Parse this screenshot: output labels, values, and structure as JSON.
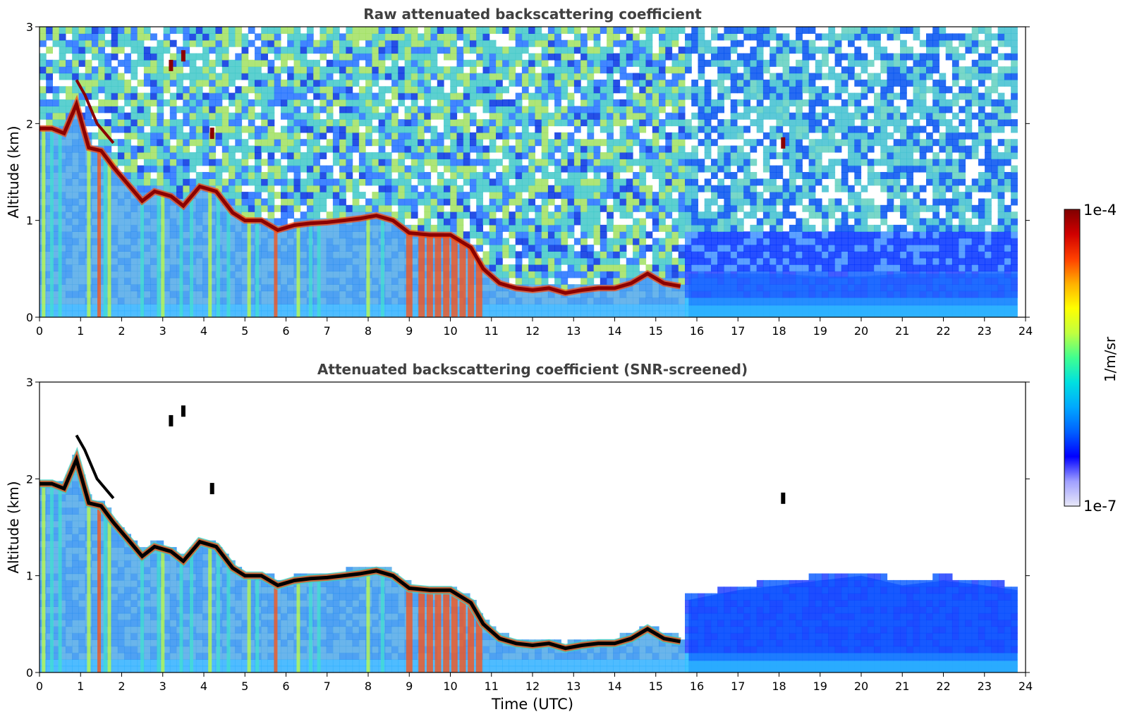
{
  "chart_data": [
    {
      "type": "heatmap",
      "title": "Raw attenuated backscattering coefficient",
      "xlabel": "",
      "ylabel": "Altitude (km)",
      "xlim": [
        0,
        24
      ],
      "ylim": [
        0,
        3
      ],
      "x_ticks": [
        "0",
        "1",
        "2",
        "3",
        "4",
        "5",
        "6",
        "7",
        "8",
        "9",
        "10",
        "11",
        "12",
        "13",
        "14",
        "15",
        "16",
        "17",
        "18",
        "19",
        "20",
        "21",
        "22",
        "23",
        "24"
      ],
      "y_ticks": [
        "0",
        "1",
        "2",
        "3"
      ],
      "data_end_x": 23.8,
      "screened": false,
      "cloud_base_km": [
        [
          0.0,
          1.95
        ],
        [
          0.3,
          1.95
        ],
        [
          0.6,
          1.9
        ],
        [
          0.9,
          2.2
        ],
        [
          1.2,
          1.75
        ],
        [
          1.5,
          1.72
        ],
        [
          1.8,
          1.55
        ],
        [
          2.0,
          1.45
        ],
        [
          2.2,
          1.35
        ],
        [
          2.5,
          1.2
        ],
        [
          2.8,
          1.3
        ],
        [
          3.2,
          1.25
        ],
        [
          3.5,
          1.15
        ],
        [
          3.9,
          1.35
        ],
        [
          4.3,
          1.3
        ],
        [
          4.7,
          1.08
        ],
        [
          5.0,
          1.0
        ],
        [
          5.4,
          1.0
        ],
        [
          5.8,
          0.9
        ],
        [
          6.2,
          0.95
        ],
        [
          6.6,
          0.97
        ],
        [
          7.0,
          0.98
        ],
        [
          7.4,
          1.0
        ],
        [
          7.8,
          1.02
        ],
        [
          8.2,
          1.05
        ],
        [
          8.6,
          1.0
        ],
        [
          9.0,
          0.87
        ],
        [
          9.5,
          0.85
        ],
        [
          10.0,
          0.85
        ],
        [
          10.5,
          0.72
        ],
        [
          10.8,
          0.5
        ],
        [
          11.2,
          0.35
        ],
        [
          11.6,
          0.3
        ],
        [
          12.0,
          0.28
        ],
        [
          12.4,
          0.3
        ],
        [
          12.8,
          0.25
        ],
        [
          13.2,
          0.28
        ],
        [
          13.6,
          0.3
        ],
        [
          14.0,
          0.3
        ],
        [
          14.4,
          0.35
        ],
        [
          14.8,
          0.45
        ],
        [
          15.2,
          0.35
        ],
        [
          15.6,
          0.32
        ]
      ],
      "cloud_base_secondary_km": [
        [
          0.9,
          2.45
        ],
        [
          1.1,
          2.3
        ],
        [
          1.4,
          2.0
        ],
        [
          1.8,
          1.8
        ]
      ],
      "upper_fragments_km": [
        [
          3.2,
          2.6
        ],
        [
          3.5,
          2.7
        ],
        [
          4.2,
          1.9
        ],
        [
          18.1,
          1.8
        ]
      ],
      "aerosol_layer_top_km": [
        [
          15.8,
          0.45
        ],
        [
          17,
          0.45
        ],
        [
          18,
          0.45
        ],
        [
          19,
          0.42
        ],
        [
          20,
          0.42
        ],
        [
          21,
          0.45
        ],
        [
          22,
          0.45
        ],
        [
          23,
          0.45
        ],
        [
          23.8,
          0.45
        ]
      ],
      "rain_columns_utc": [
        0.1,
        0.3,
        0.5,
        1.2,
        1.45,
        1.6,
        1.7,
        2.5,
        2.9,
        3.0,
        3.45,
        3.7,
        4.15,
        4.35,
        4.6,
        5.1,
        5.3,
        5.75,
        6.3,
        6.6,
        6.8,
        8.0,
        8.35,
        9.0,
        9.3,
        9.5,
        9.7,
        9.9,
        10.1,
        10.3,
        10.5,
        10.7
      ]
    },
    {
      "type": "heatmap",
      "title": "Attenuated backscattering coefficient (SNR-screened)",
      "xlabel": "Time (UTC)",
      "ylabel": "Altitude (km)",
      "xlim": [
        0,
        24
      ],
      "ylim": [
        0,
        3
      ],
      "x_ticks": [
        "0",
        "1",
        "2",
        "3",
        "4",
        "5",
        "6",
        "7",
        "8",
        "9",
        "10",
        "11",
        "12",
        "13",
        "14",
        "15",
        "16",
        "17",
        "18",
        "19",
        "20",
        "21",
        "22",
        "23",
        "24"
      ],
      "y_ticks": [
        "0",
        "1",
        "2",
        "3"
      ],
      "data_end_x": 23.8,
      "screened": true,
      "cloud_base_km": [
        [
          0.0,
          1.95
        ],
        [
          0.3,
          1.95
        ],
        [
          0.6,
          1.9
        ],
        [
          0.9,
          2.2
        ],
        [
          1.2,
          1.75
        ],
        [
          1.5,
          1.72
        ],
        [
          1.8,
          1.55
        ],
        [
          2.0,
          1.45
        ],
        [
          2.2,
          1.35
        ],
        [
          2.5,
          1.2
        ],
        [
          2.8,
          1.3
        ],
        [
          3.2,
          1.25
        ],
        [
          3.5,
          1.15
        ],
        [
          3.9,
          1.35
        ],
        [
          4.3,
          1.3
        ],
        [
          4.7,
          1.08
        ],
        [
          5.0,
          1.0
        ],
        [
          5.4,
          1.0
        ],
        [
          5.8,
          0.9
        ],
        [
          6.2,
          0.95
        ],
        [
          6.6,
          0.97
        ],
        [
          7.0,
          0.98
        ],
        [
          7.4,
          1.0
        ],
        [
          7.8,
          1.02
        ],
        [
          8.2,
          1.05
        ],
        [
          8.6,
          1.0
        ],
        [
          9.0,
          0.87
        ],
        [
          9.5,
          0.85
        ],
        [
          10.0,
          0.85
        ],
        [
          10.5,
          0.72
        ],
        [
          10.8,
          0.5
        ],
        [
          11.2,
          0.35
        ],
        [
          11.6,
          0.3
        ],
        [
          12.0,
          0.28
        ],
        [
          12.4,
          0.3
        ],
        [
          12.8,
          0.25
        ],
        [
          13.2,
          0.28
        ],
        [
          13.6,
          0.3
        ],
        [
          14.0,
          0.3
        ],
        [
          14.4,
          0.35
        ],
        [
          14.8,
          0.45
        ],
        [
          15.2,
          0.35
        ],
        [
          15.6,
          0.32
        ]
      ],
      "cloud_base_secondary_km": [
        [
          0.9,
          2.45
        ],
        [
          1.1,
          2.3
        ],
        [
          1.4,
          2.0
        ],
        [
          1.8,
          1.8
        ]
      ],
      "upper_fragments_km": [
        [
          3.2,
          2.6
        ],
        [
          3.5,
          2.7
        ],
        [
          4.2,
          1.9
        ],
        [
          18.1,
          1.8
        ]
      ],
      "aerosol_layer_top_km": [
        [
          15.8,
          0.75
        ],
        [
          17,
          0.85
        ],
        [
          18,
          0.9
        ],
        [
          19,
          0.95
        ],
        [
          20,
          1.0
        ],
        [
          21,
          0.9
        ],
        [
          22,
          0.95
        ],
        [
          23,
          0.9
        ],
        [
          23.8,
          0.85
        ]
      ],
      "rain_columns_utc": [
        0.1,
        0.3,
        0.5,
        1.2,
        1.45,
        1.6,
        1.7,
        2.5,
        2.9,
        3.0,
        3.45,
        3.7,
        4.15,
        4.35,
        4.6,
        5.1,
        5.3,
        5.75,
        6.3,
        6.6,
        6.8,
        8.0,
        8.35,
        9.0,
        9.3,
        9.5,
        9.7,
        9.9,
        10.1,
        10.3,
        10.5,
        10.7
      ]
    }
  ],
  "colorbar": {
    "label": "1/m/sr",
    "max_label": "1e-4",
    "min_label": "1e-7",
    "colormap": [
      "#e8e8f8",
      "#a0a0ff",
      "#0000ff",
      "#0060ff",
      "#00a8ff",
      "#00e0e0",
      "#40ff90",
      "#c0ff40",
      "#ffff00",
      "#ffb000",
      "#ff4000",
      "#d00000",
      "#800000"
    ]
  },
  "colors": {
    "cloud_core": "#8b0000",
    "cloud_core_screened": "#000000",
    "aerosol": "#1060ff",
    "noise_high": "#40c0c0",
    "noise_low": "#0030e0"
  }
}
